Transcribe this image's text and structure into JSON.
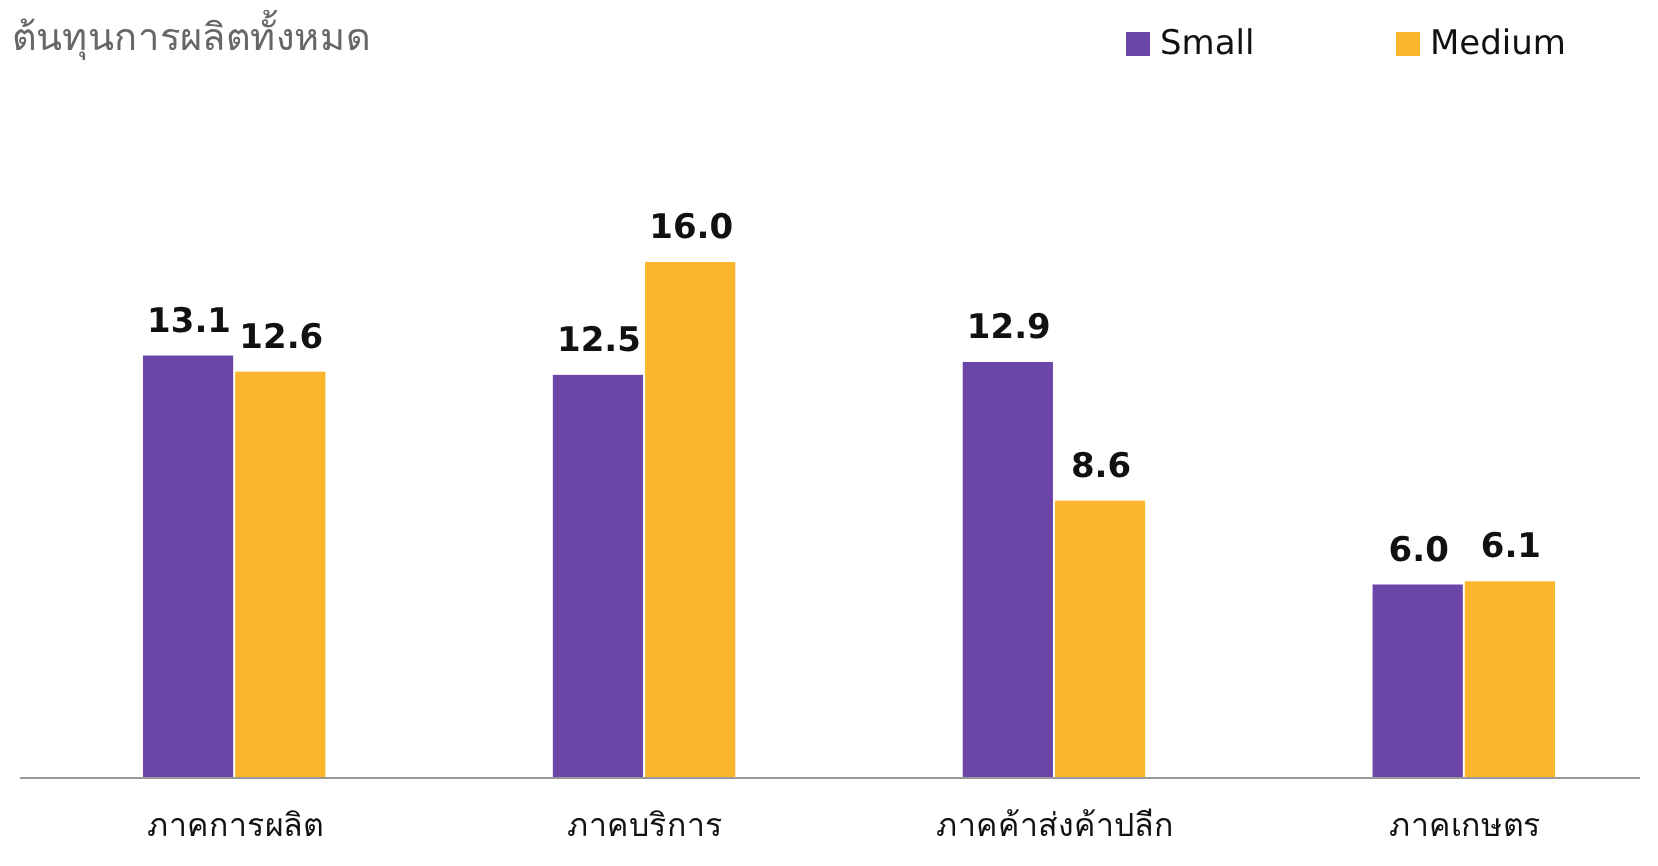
{
  "chart_data": {
    "type": "bar",
    "title": "ต้นทุนการผลิตทั้งหมด",
    "categories": [
      "ภาคการผลิต",
      "ภาคบริการ",
      "ภาคค้าส่งค้าปลีก",
      "ภาคเกษตร"
    ],
    "series": [
      {
        "name": "Small",
        "color": "#6b45a8",
        "values": [
          13.1,
          12.5,
          12.9,
          6.0
        ],
        "value_labels": [
          "13.1",
          "12.5",
          "12.9",
          "6.0"
        ]
      },
      {
        "name": "Medium",
        "color": "#fbb62e",
        "values": [
          12.6,
          16.0,
          8.6,
          6.1
        ],
        "value_labels": [
          "12.6",
          "16.0",
          "8.6",
          "6.1"
        ]
      }
    ],
    "legend": "top right"
  }
}
